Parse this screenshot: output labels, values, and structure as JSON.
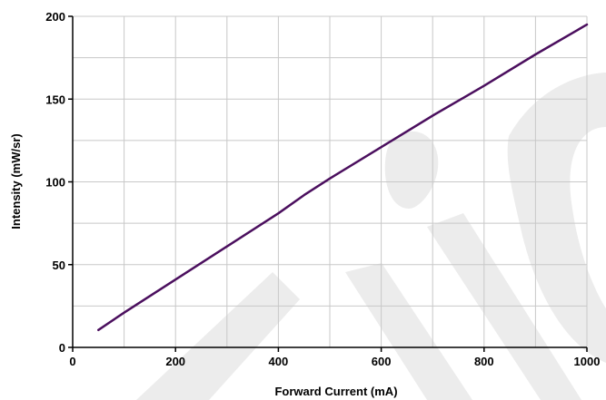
{
  "chart_data": {
    "type": "line",
    "xlabel": "Forward Current (mA)",
    "ylabel": "Intensity (mW/sr)",
    "xlim": [
      0,
      1000
    ],
    "ylim": [
      0,
      200
    ],
    "x_ticks": [
      0,
      200,
      400,
      600,
      800,
      1000
    ],
    "y_ticks": [
      0,
      50,
      100,
      150,
      200
    ],
    "x_tick_labels": [
      "0",
      "200",
      "400",
      "600",
      "800",
      "1000"
    ],
    "y_tick_labels": [
      "0",
      "50",
      "100",
      "150",
      "200"
    ],
    "grid": true,
    "series": [
      {
        "color": "#4b0f5e",
        "x": [
          50,
          100,
          200,
          300,
          400,
          450,
          500,
          600,
          700,
          800,
          900,
          1000
        ],
        "y": [
          10.5,
          21,
          41,
          61,
          81,
          92,
          102,
          121,
          140,
          158,
          177,
          195
        ]
      }
    ]
  }
}
